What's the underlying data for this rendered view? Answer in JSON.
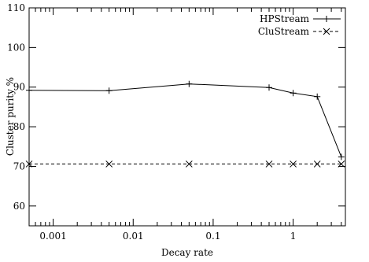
{
  "chart_data": {
    "type": "line",
    "title": "",
    "xlabel": "Decay rate",
    "ylabel": "Cluster purity %",
    "x_scale": "log",
    "xlim": [
      0.0005,
      4.5
    ],
    "ylim": [
      55,
      110
    ],
    "x_ticks": [
      {
        "value": 0.001,
        "label": "0.001"
      },
      {
        "value": 0.01,
        "label": "0.01"
      },
      {
        "value": 0.1,
        "label": "0.1"
      },
      {
        "value": 1,
        "label": "1"
      }
    ],
    "y_ticks": [
      {
        "value": 60,
        "label": "60"
      },
      {
        "value": 70,
        "label": "70"
      },
      {
        "value": 80,
        "label": "80"
      },
      {
        "value": 90,
        "label": "90"
      },
      {
        "value": 100,
        "label": "100"
      },
      {
        "value": 110,
        "label": "110"
      }
    ],
    "grid": false,
    "legend_position": "top-right",
    "series": [
      {
        "name": "HPStream",
        "line_style": "solid",
        "marker": "plus",
        "color": "#000000",
        "x": [
          0.0005,
          0.005,
          0.05,
          0.5,
          1,
          2,
          4
        ],
        "y": [
          89.2,
          89.1,
          90.8,
          89.9,
          88.5,
          87.6,
          72.4
        ]
      },
      {
        "name": "CluStream",
        "line_style": "dashed",
        "marker": "cross",
        "color": "#000000",
        "x": [
          0.0005,
          0.005,
          0.05,
          0.5,
          1,
          2,
          4
        ],
        "y": [
          70.6,
          70.6,
          70.6,
          70.6,
          70.6,
          70.6,
          70.6
        ]
      }
    ]
  }
}
